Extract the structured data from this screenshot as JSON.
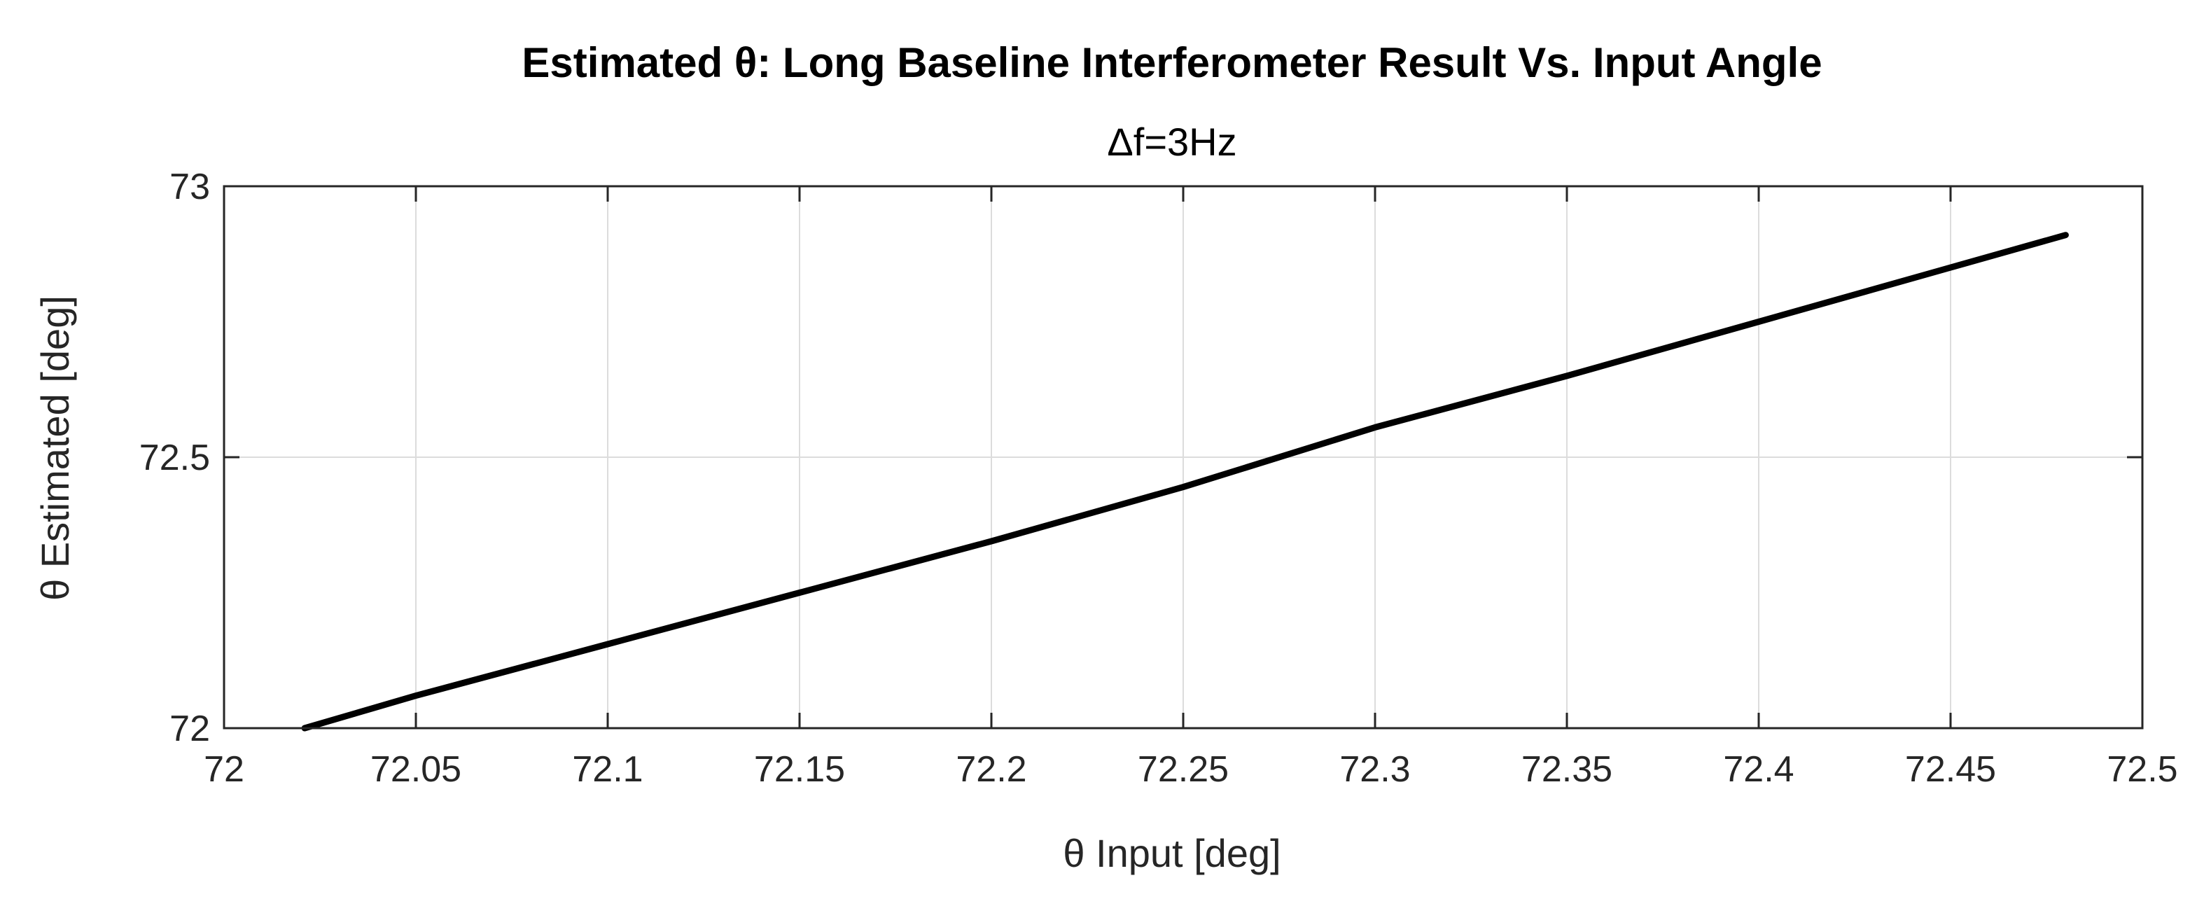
{
  "chart_data": {
    "type": "line",
    "title": "Estimated θ: Long Baseline Interferometer Result Vs. Input Angle",
    "subtitle": "Δf=3Hz",
    "xlabel": "θ Input [deg]",
    "ylabel": "θ Estimated [deg]",
    "xlim": [
      72,
      72.5
    ],
    "ylim": [
      72,
      73
    ],
    "xticks": [
      72,
      72.05,
      72.1,
      72.15,
      72.2,
      72.25,
      72.3,
      72.35,
      72.4,
      72.45,
      72.5
    ],
    "xtick_labels": [
      "72",
      "72.05",
      "72.1",
      "72.15",
      "72.2",
      "72.25",
      "72.3",
      "72.35",
      "72.4",
      "72.45",
      "72.5"
    ],
    "yticks": [
      72,
      72.5,
      73
    ],
    "ytick_labels": [
      "72",
      "72.5",
      "73"
    ],
    "grid": true,
    "legend": "none",
    "series": [
      {
        "color": "#000000",
        "x": [
          72.021,
          72.05,
          72.1,
          72.15,
          72.2,
          72.25,
          72.3,
          72.35,
          72.4,
          72.45,
          72.48
        ],
        "y": [
          72.0,
          72.06,
          72.155,
          72.25,
          72.345,
          72.445,
          72.555,
          72.65,
          72.75,
          72.85,
          72.91
        ]
      }
    ]
  }
}
